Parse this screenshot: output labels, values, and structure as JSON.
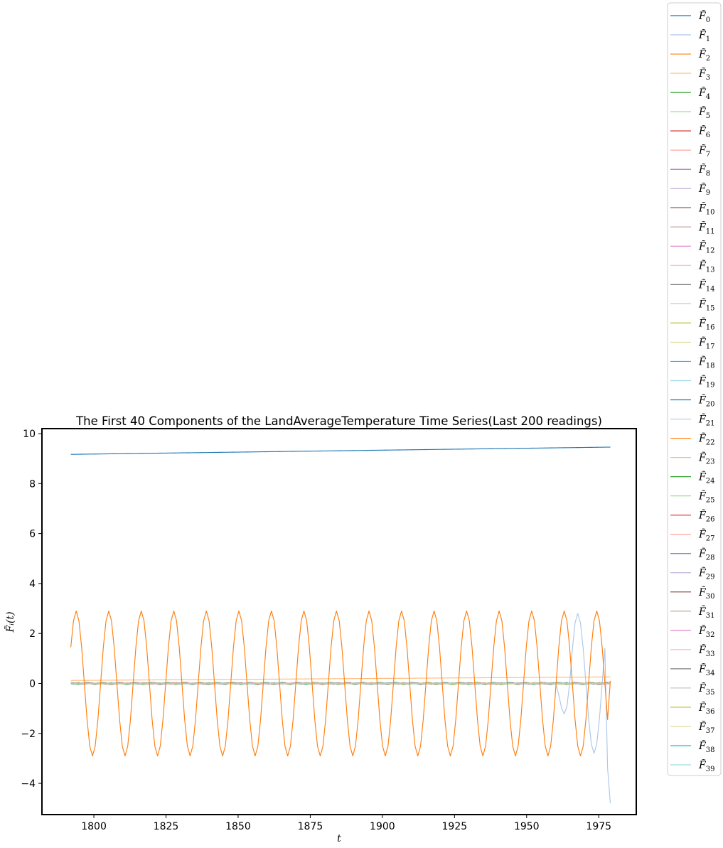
{
  "chart_data": {
    "type": "line",
    "title": "The First 40 Components of the LandAverageTemperature Time Series(Last 200 readings)",
    "xlabel": "t",
    "ylabel": "F̃ᵢ(t)",
    "xlim": [
      1782,
      1988
    ],
    "ylim": [
      -5.25,
      10.2
    ],
    "xticks": [
      1800,
      1825,
      1850,
      1875,
      1900,
      1925,
      1950,
      1975
    ],
    "yticks": [
      -4,
      -2,
      0,
      2,
      4,
      6,
      8,
      10
    ],
    "xtick_labels": [
      "1800",
      "1825",
      "1850",
      "1875",
      "1900",
      "1925",
      "1950",
      "1975"
    ],
    "ytick_labels": [
      "−4",
      "−2",
      "0",
      "2",
      "4",
      "6",
      "8",
      "10"
    ],
    "x_start": 1792,
    "x_end": 1979,
    "n_points": 200,
    "legend_position": "outside-right",
    "legend_prefix": "F̃",
    "series": [
      {
        "name": "0",
        "color": "#1f77b4",
        "kind": "trend",
        "start": 9.17,
        "end": 9.46
      },
      {
        "name": "1",
        "color": "#aec7e8",
        "kind": "tail_cycle",
        "amp": 2.8,
        "period": 12,
        "tail_start": 1960,
        "final": -4.8
      },
      {
        "name": "2",
        "color": "#ff7f0e",
        "kind": "cycle",
        "amp": 2.9,
        "period": 12,
        "phase": 2.0,
        "final": 0.1
      },
      {
        "name": "3",
        "color": "#ffbb78",
        "kind": "trend",
        "start": 0.12,
        "end": 0.26
      },
      {
        "name": "4",
        "color": "#2ca02c",
        "kind": "small",
        "amp": 0.05,
        "period": 6
      },
      {
        "name": "5",
        "color": "#98df8a",
        "kind": "small",
        "amp": 0.06,
        "period": 6
      },
      {
        "name": "6",
        "color": "#d62728",
        "kind": "small",
        "amp": 0.04,
        "period": 4
      },
      {
        "name": "7",
        "color": "#ff9896",
        "kind": "small",
        "amp": 0.04,
        "period": 4
      },
      {
        "name": "8",
        "color": "#9467bd",
        "kind": "small",
        "amp": 0.03,
        "period": 3
      },
      {
        "name": "9",
        "color": "#c5b0d5",
        "kind": "small",
        "amp": 0.03,
        "period": 3
      },
      {
        "name": "10",
        "color": "#8c564b",
        "kind": "small",
        "amp": 0.03,
        "period": 5
      },
      {
        "name": "11",
        "color": "#c49c94",
        "kind": "small",
        "amp": 0.03,
        "period": 5
      },
      {
        "name": "12",
        "color": "#e377c2",
        "kind": "small",
        "amp": 0.02,
        "period": 7
      },
      {
        "name": "13",
        "color": "#f7b6d2",
        "kind": "small",
        "amp": 0.02,
        "period": 7
      },
      {
        "name": "14",
        "color": "#7f7f7f",
        "kind": "small",
        "amp": 0.02,
        "period": 8
      },
      {
        "name": "15",
        "color": "#c7c7c7",
        "kind": "small",
        "amp": 0.02,
        "period": 8
      },
      {
        "name": "16",
        "color": "#bcbd22",
        "kind": "small",
        "amp": 0.02,
        "period": 9
      },
      {
        "name": "17",
        "color": "#dbdb8d",
        "kind": "small",
        "amp": 0.02,
        "period": 9
      },
      {
        "name": "18",
        "color": "#17becf",
        "kind": "small",
        "amp": 0.02,
        "period": 10
      },
      {
        "name": "19",
        "color": "#9edae5",
        "kind": "small",
        "amp": 0.02,
        "period": 10
      },
      {
        "name": "20",
        "color": "#1f77b4",
        "kind": "small",
        "amp": 0.02,
        "period": 11
      },
      {
        "name": "21",
        "color": "#aec7e8",
        "kind": "small",
        "amp": 0.02,
        "period": 11
      },
      {
        "name": "22",
        "color": "#ff7f0e",
        "kind": "small",
        "amp": 0.015,
        "period": 13
      },
      {
        "name": "23",
        "color": "#ffbb78",
        "kind": "small",
        "amp": 0.015,
        "period": 13
      },
      {
        "name": "24",
        "color": "#2ca02c",
        "kind": "small",
        "amp": 0.015,
        "period": 14
      },
      {
        "name": "25",
        "color": "#98df8a",
        "kind": "small",
        "amp": 0.015,
        "period": 14
      },
      {
        "name": "26",
        "color": "#d62728",
        "kind": "small",
        "amp": 0.015,
        "period": 15
      },
      {
        "name": "27",
        "color": "#ff9896",
        "kind": "small",
        "amp": 0.015,
        "period": 15
      },
      {
        "name": "28",
        "color": "#9467bd",
        "kind": "small",
        "amp": 0.01,
        "period": 16
      },
      {
        "name": "29",
        "color": "#c5b0d5",
        "kind": "small",
        "amp": 0.01,
        "period": 16
      },
      {
        "name": "30",
        "color": "#8c564b",
        "kind": "small",
        "amp": 0.01,
        "period": 17
      },
      {
        "name": "31",
        "color": "#c49c94",
        "kind": "small",
        "amp": 0.01,
        "period": 17
      },
      {
        "name": "32",
        "color": "#e377c2",
        "kind": "small",
        "amp": 0.01,
        "period": 18
      },
      {
        "name": "33",
        "color": "#f7b6d2",
        "kind": "small",
        "amp": 0.01,
        "period": 18
      },
      {
        "name": "34",
        "color": "#7f7f7f",
        "kind": "small",
        "amp": 0.01,
        "period": 19
      },
      {
        "name": "35",
        "color": "#c7c7c7",
        "kind": "small",
        "amp": 0.01,
        "period": 19
      },
      {
        "name": "36",
        "color": "#bcbd22",
        "kind": "small",
        "amp": 0.01,
        "period": 20
      },
      {
        "name": "37",
        "color": "#dbdb8d",
        "kind": "small",
        "amp": 0.01,
        "period": 20
      },
      {
        "name": "38",
        "color": "#17becf",
        "kind": "small",
        "amp": 0.01,
        "period": 21
      },
      {
        "name": "39",
        "color": "#9edae5",
        "kind": "small",
        "amp": 0.01,
        "period": 21
      }
    ]
  }
}
